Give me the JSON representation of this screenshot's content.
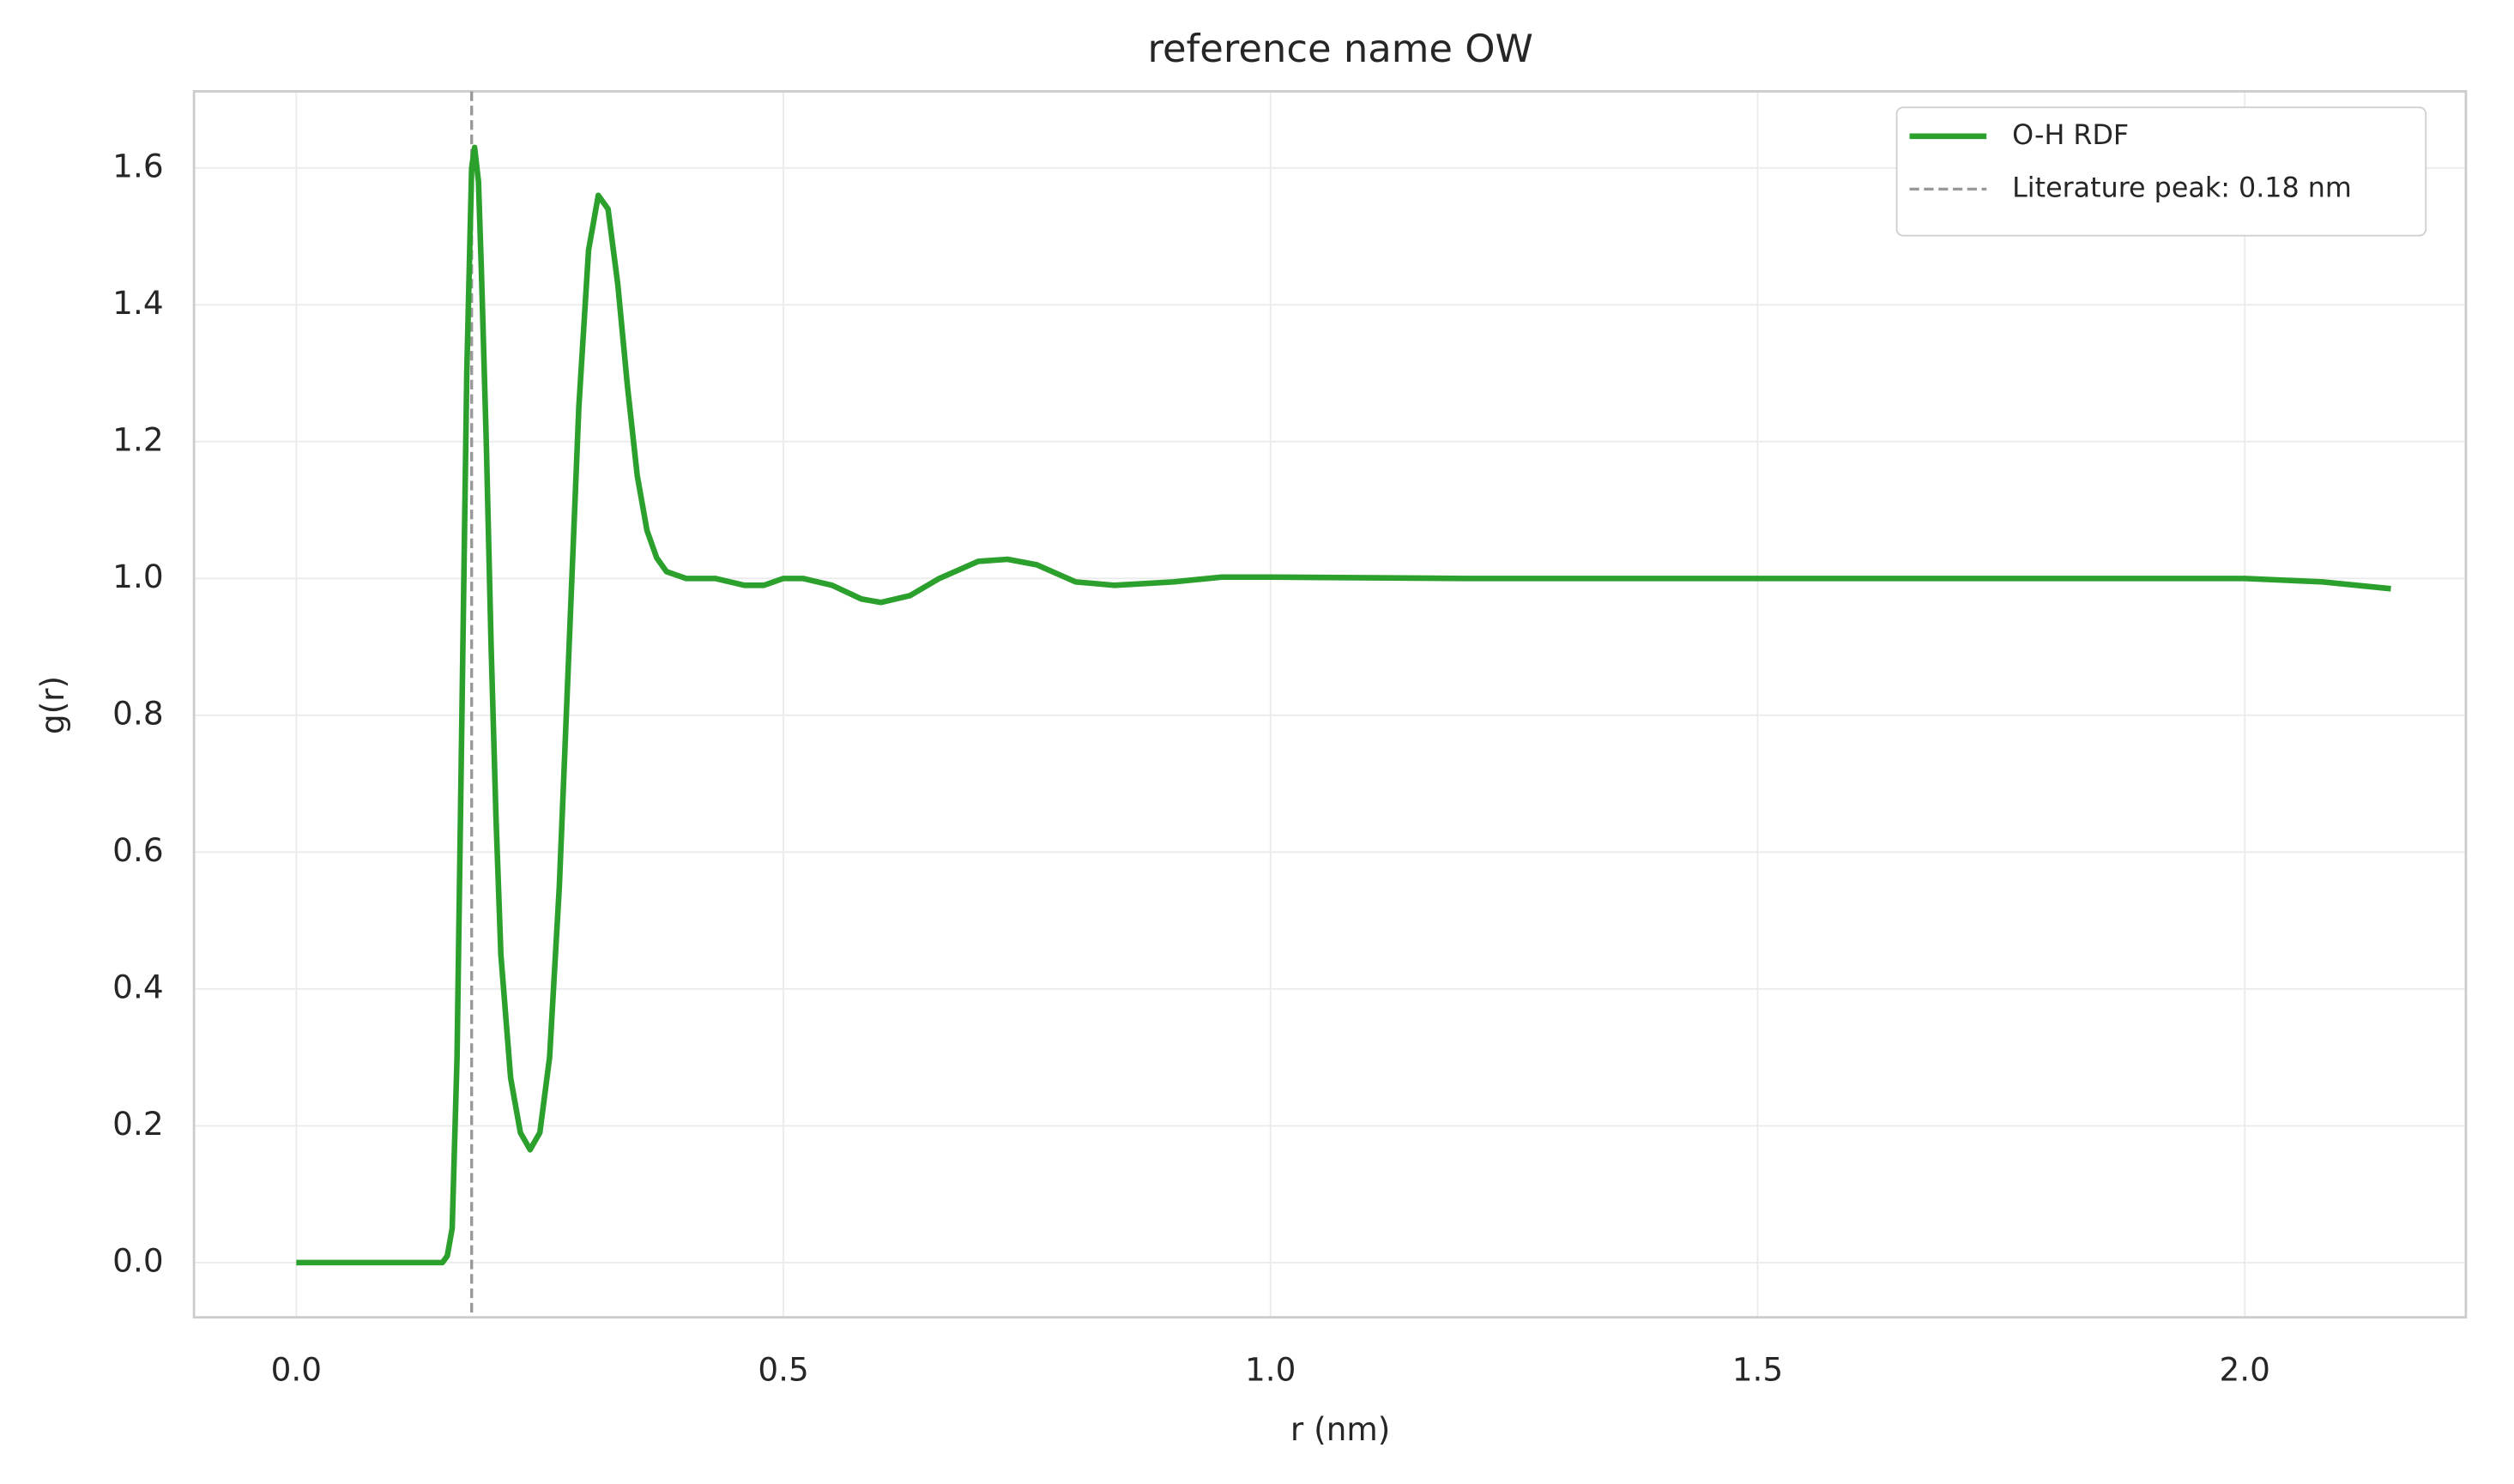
{
  "chart_data": {
    "type": "line",
    "title": "reference name OW",
    "x_label": "r (nm)",
    "y_label": "g(r)",
    "x": [
      0.0,
      0.05,
      0.1,
      0.15,
      0.155,
      0.16,
      0.165,
      0.17,
      0.175,
      0.18,
      0.183,
      0.187,
      0.19,
      0.195,
      0.2,
      0.205,
      0.21,
      0.22,
      0.23,
      0.24,
      0.25,
      0.26,
      0.27,
      0.28,
      0.29,
      0.3,
      0.31,
      0.32,
      0.33,
      0.34,
      0.35,
      0.36,
      0.37,
      0.38,
      0.4,
      0.43,
      0.46,
      0.48,
      0.5,
      0.52,
      0.55,
      0.58,
      0.6,
      0.63,
      0.66,
      0.7,
      0.73,
      0.76,
      0.8,
      0.84,
      0.9,
      0.95,
      1.0,
      1.2,
      1.5,
      1.8,
      2.0,
      2.08,
      2.15
    ],
    "series": [
      {
        "name": "O-H RDF",
        "color": "#2ca02c",
        "values": [
          0,
          0,
          0,
          0,
          0.01,
          0.05,
          0.3,
          0.8,
          1.3,
          1.6,
          1.63,
          1.58,
          1.45,
          1.2,
          0.9,
          0.65,
          0.45,
          0.27,
          0.19,
          0.165,
          0.19,
          0.3,
          0.55,
          0.9,
          1.25,
          1.48,
          1.56,
          1.54,
          1.43,
          1.28,
          1.15,
          1.07,
          1.03,
          1.01,
          1.0,
          1.0,
          0.99,
          0.99,
          1.0,
          1.0,
          0.99,
          0.97,
          0.965,
          0.975,
          1.0,
          1.025,
          1.028,
          1.02,
          0.995,
          0.99,
          0.995,
          1.002,
          1.002,
          1.0,
          1.0,
          1.0,
          1.0,
          0.995,
          0.985
        ]
      }
    ],
    "vlines": [
      {
        "name": "Literature peak: 0.18 nm",
        "x": 0.18,
        "color": "#999999"
      }
    ],
    "xlim": [
      -0.105,
      2.227
    ],
    "ylim": [
      -0.08,
      1.712
    ],
    "xticks": [
      {
        "value": 0,
        "label": "0.0"
      },
      0.5,
      {
        "value": 1,
        "label": "1.0"
      },
      1.5,
      {
        "value": 2,
        "label": "2.0"
      }
    ],
    "yticks": [
      {
        "value": 0,
        "label": "0.0"
      },
      0.2,
      0.4,
      0.6,
      0.8,
      {
        "value": 1,
        "label": "1.0"
      },
      1.2,
      1.4,
      1.6
    ],
    "grid": true,
    "legend": "upper right"
  }
}
